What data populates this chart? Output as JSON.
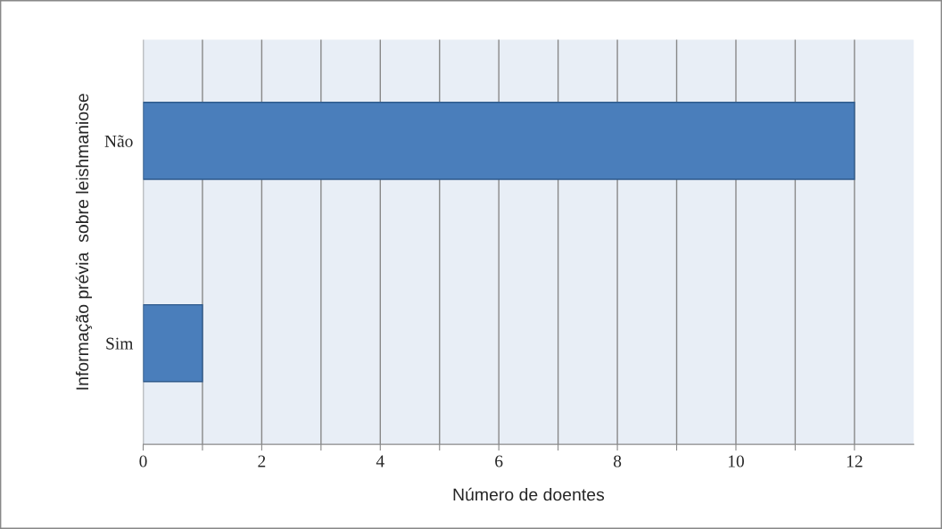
{
  "chart_data": {
    "type": "bar",
    "orientation": "horizontal",
    "categories": [
      "Não",
      "Sim"
    ],
    "series": [
      {
        "color": "#4a7ebb",
        "values": [
          12,
          1
        ]
      }
    ],
    "xlabel": "Número de doentes",
    "ylabel": "Informação prévia  sobre leishmaniose",
    "xlim": [
      0,
      13
    ],
    "xticks": [
      0,
      {
        "value": 1,
        "label": null
      },
      2,
      {
        "value": 3,
        "label": null
      },
      4,
      {
        "value": 5,
        "label": null
      },
      6,
      {
        "value": 7,
        "label": null
      },
      8,
      {
        "value": 9,
        "label": null
      },
      10,
      {
        "value": 11,
        "label": null
      },
      12
    ],
    "grid": "x",
    "legend": false
  }
}
